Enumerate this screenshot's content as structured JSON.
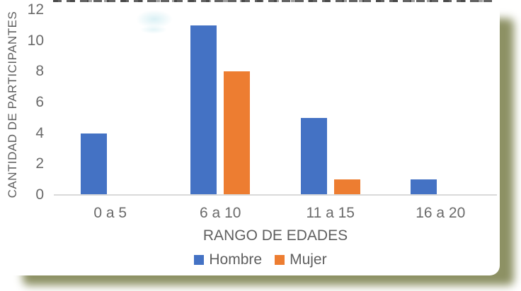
{
  "chart_data": {
    "type": "bar",
    "title": "",
    "categories": [
      "0 a 5",
      "6 a 10",
      "11 a 15",
      "16 a 20"
    ],
    "series": [
      {
        "name": "Hombre",
        "color": "#4472C4",
        "values": [
          4,
          11,
          5,
          1
        ]
      },
      {
        "name": "Mujer",
        "color": "#ED7D31",
        "values": [
          0,
          8,
          1,
          0
        ]
      }
    ],
    "xlabel": "RANGO DE EDADES",
    "ylabel": "CANTIDAD DE PARTICIPANTES",
    "ylim": [
      0,
      12
    ],
    "yticks": [
      0,
      2,
      4,
      6,
      8,
      10,
      12
    ],
    "grid": false,
    "legend_position": "bottom"
  },
  "style": {
    "background": "#ffffff",
    "frame_shadow_color": "#8d9164",
    "baseline_color": "#d9d9d9",
    "axis_text_color": "#6a6a6a",
    "axis_title_color": "#5f5f5f"
  }
}
